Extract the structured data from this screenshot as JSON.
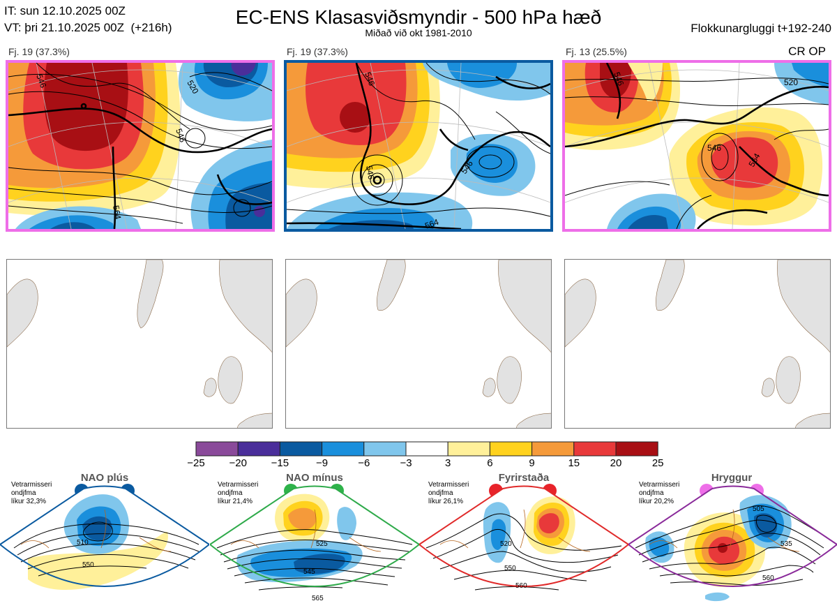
{
  "header": {
    "it": "IT: sun 12.10.2025 00Z",
    "vt": "VT: þri 21.10.2025 00Z  (+216h)",
    "title": "EC-ENS Klasasviðsmyndir - 500 hPa hæð",
    "subtitle": "Miðað við okt 1981-2010",
    "window": "Flokkunargluggi t+192-240"
  },
  "clusters": [
    {
      "label": "Fj. 19 (37.3%)",
      "frame_color": "#ee6ee8",
      "contours": [
        "546",
        "520",
        "546",
        "564"
      ]
    },
    {
      "label": "Fj. 19 (37.3%)",
      "frame_color": "#0a5aa0",
      "contours": [
        "546",
        "546",
        "546",
        "564"
      ]
    },
    {
      "label": "Fj. 13 (25.5%)",
      "frame_color": "#ee6ee8",
      "contours": [
        "546",
        "520",
        "546",
        "564"
      ],
      "extra_label": "CR OP"
    }
  ],
  "colorbar": {
    "ticks": [
      "−25",
      "−20",
      "−15",
      "−9",
      "−6",
      "−3",
      "3",
      "6",
      "9",
      "15",
      "20",
      "25"
    ],
    "colors": [
      "#8a4a9a",
      "#4a2e9a",
      "#0a5aa0",
      "#1a8fdc",
      "#80c6ec",
      "#ffffff",
      "#fff09a",
      "#ffd21e",
      "#f59a3a",
      "#e8393a",
      "#a80f14"
    ]
  },
  "regimes": [
    {
      "title": "NAO plús",
      "note": "Vetrarmisseri\nondjfma\nlíkur 32,3%",
      "color": "#0a5aa0",
      "dot_color": "#0a5aa0",
      "labels": [
        "510",
        "550"
      ]
    },
    {
      "title": "NAO mínus",
      "note": "Vetrarmisseri\nondjfma\nlíkur 21,4%",
      "color": "#2eaa4a",
      "dot_color": "#2eb34a",
      "labels": [
        "525",
        "545",
        "565"
      ]
    },
    {
      "title": "Fyrirstaða",
      "note": "Vetrarmisseri\nondjfma\nlíkur 26,1%",
      "color": "#e02a2a",
      "dot_color": "#e8232a",
      "labels": [
        "520",
        "550",
        "560"
      ]
    },
    {
      "title": "Hryggur",
      "note": "Vetrarmisseri\nondjfma\nlíkur 20,2%",
      "color": "#8a2a9a",
      "dot_color": "#ee6ee8",
      "labels": [
        "505",
        "535",
        "560"
      ]
    }
  ]
}
